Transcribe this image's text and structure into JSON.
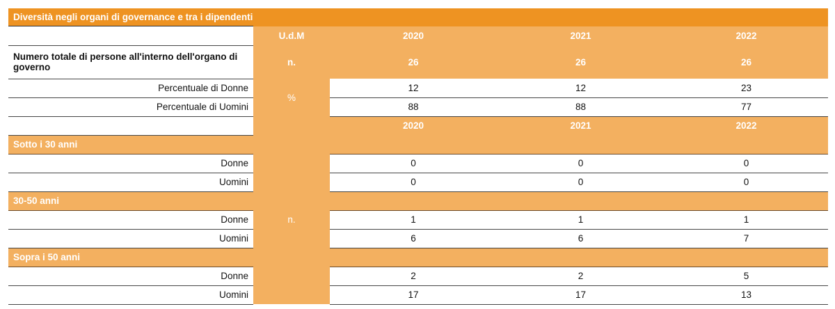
{
  "title": "Diversità negli organi di governance e tra i dipendenti",
  "header": {
    "udm": "U.d.M",
    "years": [
      "2020",
      "2021",
      "2022"
    ]
  },
  "governance": {
    "total_label": "Numero totale di persone all'interno dell'organo di governo",
    "total_udm": "n.",
    "total_values": [
      "26",
      "26",
      "26"
    ],
    "pct_udm": "%",
    "rows": [
      {
        "label": "Percentuale di Donne",
        "values": [
          "12",
          "12",
          "23"
        ]
      },
      {
        "label": "Percentuale di Uomini",
        "values": [
          "88",
          "88",
          "77"
        ]
      }
    ]
  },
  "employees": {
    "years": [
      "2020",
      "2021",
      "2022"
    ],
    "udm": "n.",
    "groups": [
      {
        "label": "Sotto i 30 anni",
        "rows": [
          {
            "label": "Donne",
            "values": [
              "0",
              "0",
              "0"
            ]
          },
          {
            "label": "Uomini",
            "values": [
              "0",
              "0",
              "0"
            ]
          }
        ]
      },
      {
        "label": "30-50 anni",
        "rows": [
          {
            "label": "Donne",
            "values": [
              "1",
              "1",
              "1"
            ]
          },
          {
            "label": "Uomini",
            "values": [
              "6",
              "6",
              "7"
            ]
          }
        ]
      },
      {
        "label": "Sopra i 50 anni",
        "rows": [
          {
            "label": "Donne",
            "values": [
              "2",
              "2",
              "5"
            ]
          },
          {
            "label": "Uomini",
            "values": [
              "17",
              "17",
              "13"
            ]
          }
        ]
      }
    ]
  },
  "colors": {
    "title_bg": "#EE9322",
    "cell_bg": "#F3B060"
  }
}
